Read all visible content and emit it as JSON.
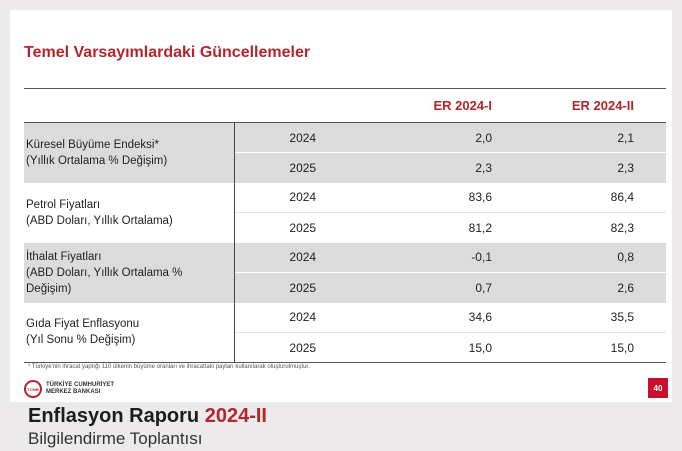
{
  "slide": {
    "title": "Temel Varsayımlardaki Güncellemeler",
    "columns": [
      "",
      "",
      "ER 2024-I",
      "ER 2024-II"
    ],
    "rows": [
      {
        "name": "Küresel Büyüme Endeksi*\n(Yıllık Ortalama % Değişim)",
        "data": [
          {
            "year": "2024",
            "er1": "2,0",
            "er2": "2,1"
          },
          {
            "year": "2025",
            "er1": "2,3",
            "er2": "2,3"
          }
        ]
      },
      {
        "name": "Petrol Fiyatları\n(ABD Doları, Yıllık Ortalama)",
        "data": [
          {
            "year": "2024",
            "er1": "83,6",
            "er2": "86,4"
          },
          {
            "year": "2025",
            "er1": "81,2",
            "er2": "82,3"
          }
        ]
      },
      {
        "name": "İthalat Fiyatları\n(ABD Doları, Yıllık Ortalama %\nDeğişim)",
        "data": [
          {
            "year": "2024",
            "er1": "-0,1",
            "er2": "0,8"
          },
          {
            "year": "2025",
            "er1": "0,7",
            "er2": "2,6"
          }
        ]
      },
      {
        "name": "Gıda Fiyat Enflasyonu\n(Yıl Sonu % Değişim)",
        "data": [
          {
            "year": "2024",
            "er1": "34,6",
            "er2": "35,5"
          },
          {
            "year": "2025",
            "er1": "15,0",
            "er2": "15,0"
          }
        ]
      }
    ],
    "footnote": "* Türkiye'nin ihracat yaptığı 110 ülkenin büyüme oranları ve ihracattaki payları kullanılarak oluşturulmuştur.",
    "logo_line1": "TÜRKİYE CUMHURİYET",
    "logo_line2": "MERKEZ BANKASI",
    "logo_mark": "TCMB",
    "page_number": "40",
    "accent_color": "#b2262e"
  },
  "banner": {
    "title_main": "Enflasyon Raporu",
    "title_accent": "2024-II",
    "subtitle": "Bilgilendirme Toplantısı"
  }
}
